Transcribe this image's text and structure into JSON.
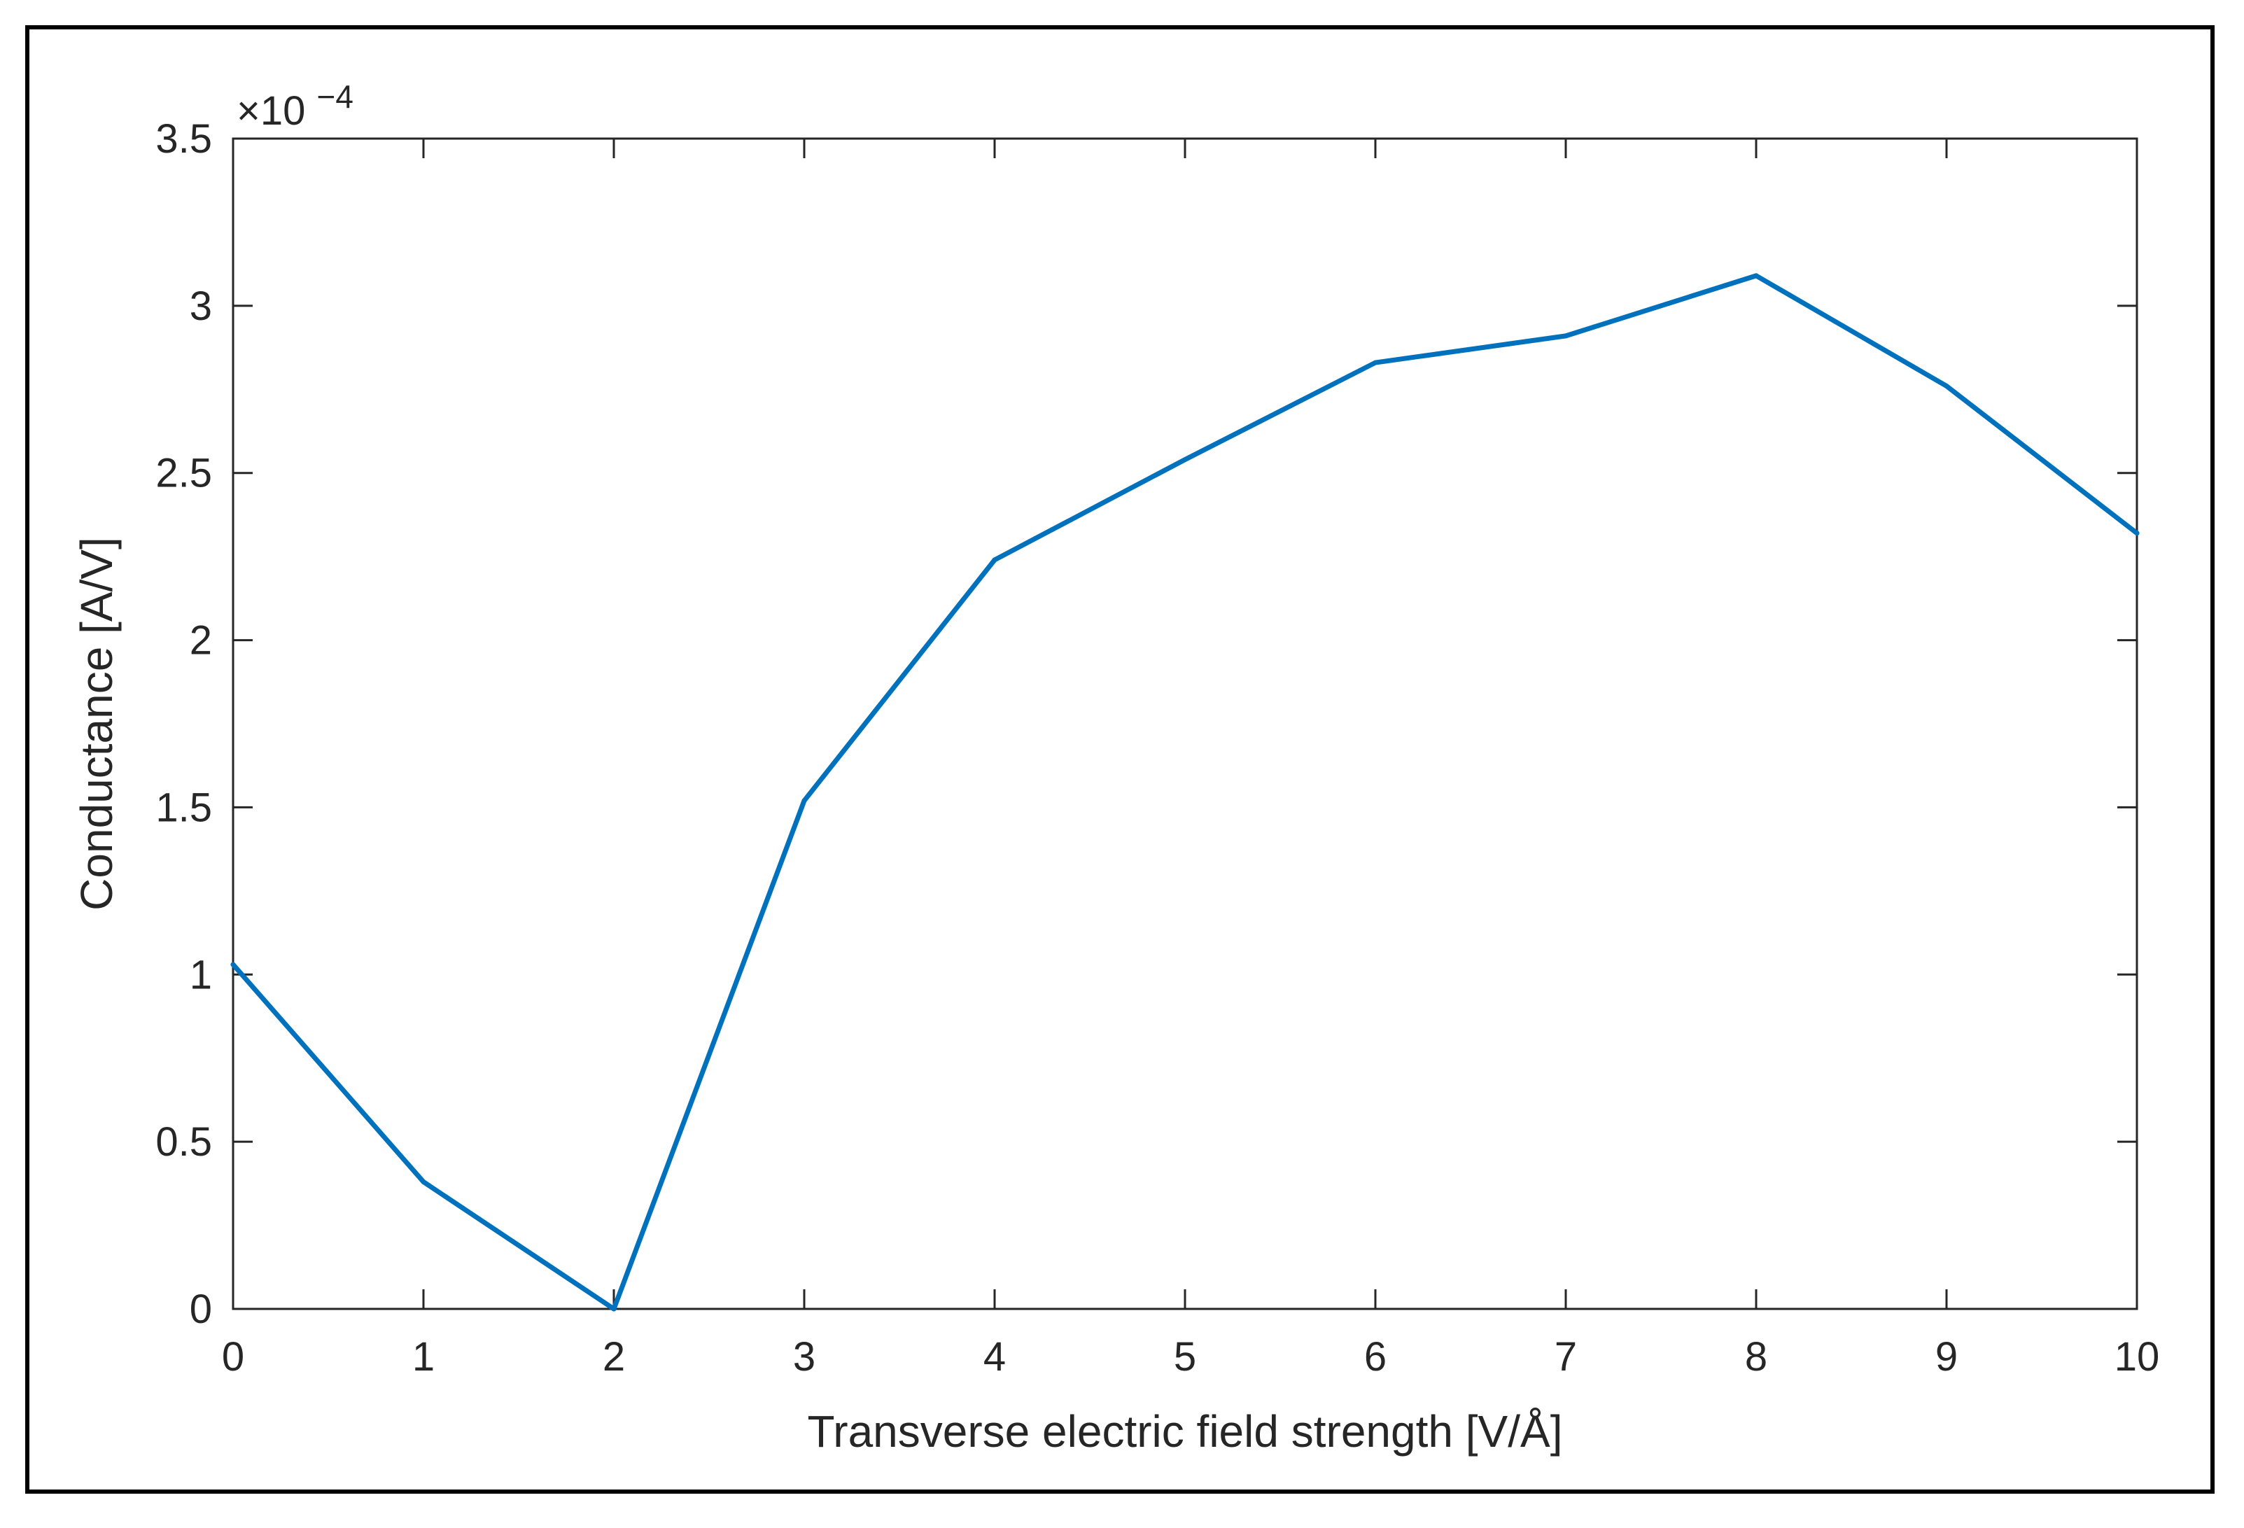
{
  "chart_data": {
    "type": "line",
    "title": "",
    "xlabel": "Transverse electric field strength [V/Å]",
    "ylabel": "Conductance [A/V]",
    "y_exponent_prefix": "×10",
    "y_exponent_power": "−4",
    "xlim": [
      0,
      10
    ],
    "ylim": [
      0,
      3.5
    ],
    "x_ticks": [
      "0",
      "1",
      "2",
      "3",
      "4",
      "5",
      "6",
      "7",
      "8",
      "9",
      "10"
    ],
    "y_ticks": [
      "0",
      "0.5",
      "1",
      "1.5",
      "2",
      "2.5",
      "3",
      "3.5"
    ],
    "grid": false,
    "series": [
      {
        "name": "Conductance",
        "color": "#0072BD",
        "x": [
          0,
          1,
          2,
          3,
          4,
          5,
          6,
          7,
          8,
          9,
          10
        ],
        "y": [
          1.03,
          0.38,
          0.0,
          1.52,
          2.24,
          2.54,
          2.83,
          2.91,
          3.09,
          2.76,
          2.32
        ]
      }
    ]
  },
  "colors": {
    "line": "#0072BD",
    "axis": "#262626",
    "frame": "#000000"
  }
}
